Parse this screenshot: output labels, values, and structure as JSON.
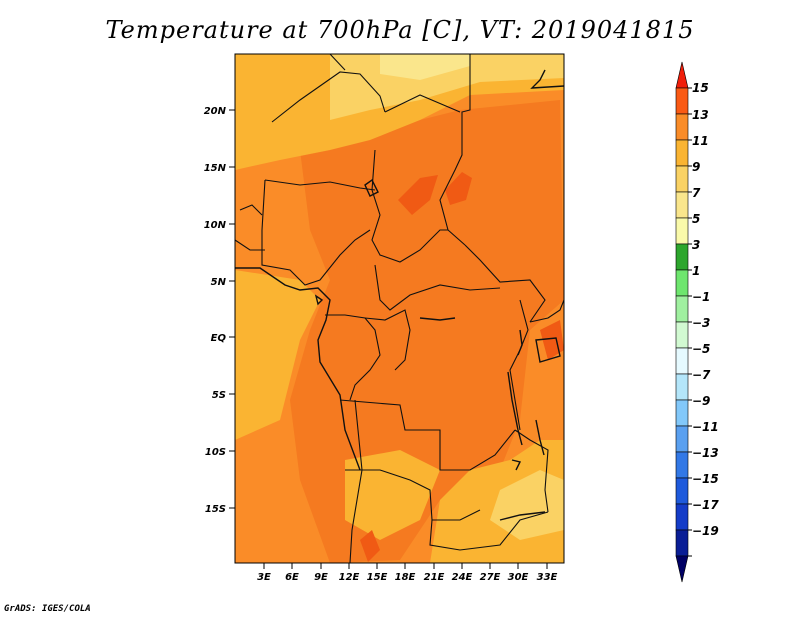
{
  "title": "Temperature at 700hPa [C], VT: 2019041815",
  "credit": "GrADS: IGES/COLA",
  "map": {
    "lat_labels": [
      "20N",
      "15N",
      "10N",
      "5N",
      "EQ",
      "5S",
      "10S",
      "15S"
    ],
    "lon_labels": [
      "3E",
      "6E",
      "9E",
      "12E",
      "15E",
      "18E",
      "21E",
      "24E",
      "27E",
      "30E",
      "33E"
    ]
  },
  "colorbar": {
    "labels": [
      "15",
      "13",
      "11",
      "9",
      "7",
      "5",
      "3",
      "1",
      "−1",
      "−3",
      "−5",
      "−7",
      "−9",
      "−11",
      "−13",
      "−15",
      "−17",
      "−19"
    ],
    "colors_top_to_bottom": [
      "#f01e0a",
      "#fa5a14",
      "#fa8c28",
      "#fab432",
      "#fad264",
      "#fae68c",
      "#fafaaa",
      "#2da62d",
      "#6ee66e",
      "#a0f0a0",
      "#d2fad2",
      "#e6faff",
      "#b4e6fa",
      "#82c8fa",
      "#5aa0f0",
      "#3278e6",
      "#1e5adc",
      "#143cc8",
      "#0a1e96",
      "#000064"
    ]
  }
}
